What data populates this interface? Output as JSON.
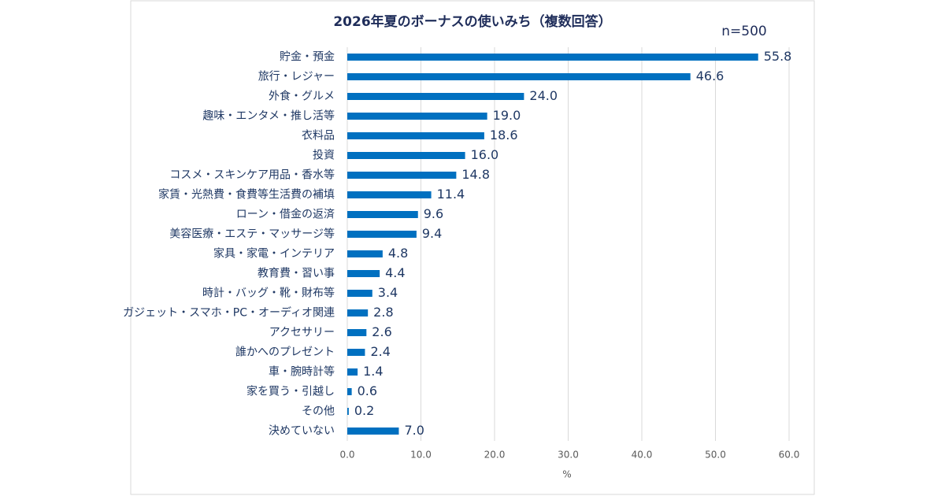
{
  "chart_data": {
    "type": "barh",
    "title": "2026年夏のボーナスの使いみち（複数回答）",
    "sample_size": "n=500",
    "xlabel": "%",
    "categories": [
      "貯金・預金",
      "旅行・レジャー",
      "外食・グルメ",
      "趣味・エンタメ・推し活等",
      "衣料品",
      "投資",
      "コスメ・スキンケア用品・香水等",
      "家賃・光熱費・食費等生活費の補填",
      "ローン・借金の返済",
      "美容医療・エステ・マッサージ等",
      "家具・家電・インテリア",
      "教育費・習い事",
      "時計・バッグ・靴・財布等",
      "ガジェット・スマホ・PC・オーディオ関連",
      "アクセサリー",
      "誰かへのプレゼント",
      "車・腕時計等",
      "家を買う・引越し",
      "その他",
      "決めていない"
    ],
    "values": [
      55.8,
      46.6,
      24.0,
      19.0,
      18.6,
      16.0,
      14.8,
      11.4,
      9.6,
      9.4,
      4.8,
      4.4,
      3.4,
      2.8,
      2.6,
      2.4,
      1.4,
      0.6,
      0.2,
      7.0
    ],
    "value_labels": [
      "55.8",
      "46.6",
      "24.0",
      "19.0",
      "18.6",
      "16.0",
      "14.8",
      "11.4",
      "9.6",
      "9.4",
      "4.8",
      "4.4",
      "3.4",
      "2.8",
      "2.6",
      "2.4",
      "1.4",
      "0.6",
      "0.2",
      "7.0"
    ],
    "color": "#0070c0",
    "xlim": [
      0,
      60
    ],
    "xticks": [
      {
        "value": 0,
        "label": "0.0"
      },
      {
        "value": 10,
        "label": "10.0"
      },
      {
        "value": 20,
        "label": "20.0"
      },
      {
        "value": 30,
        "label": "30.0"
      },
      {
        "value": 40,
        "label": "40.0"
      },
      {
        "value": 50,
        "label": "50.0"
      },
      {
        "value": 60,
        "label": "60.0"
      }
    ],
    "grid": true
  }
}
